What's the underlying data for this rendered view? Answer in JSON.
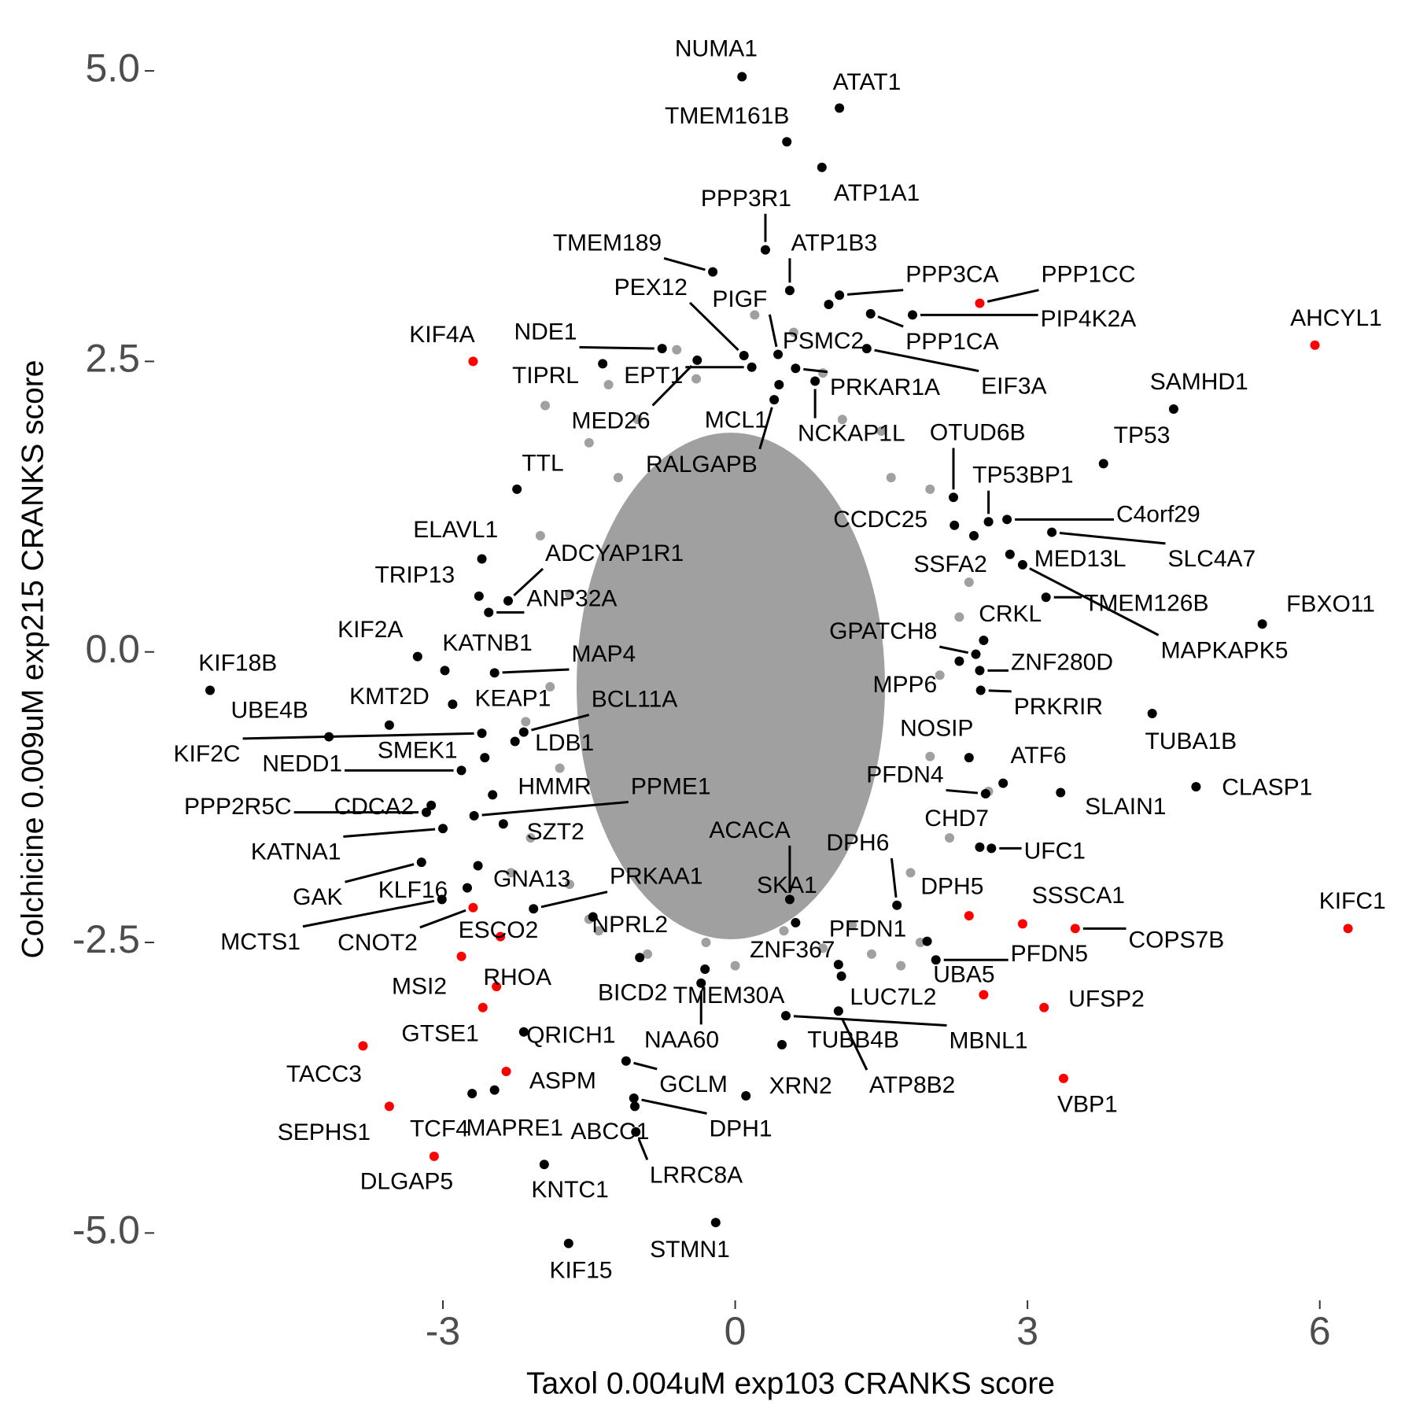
{
  "chart_data": {
    "type": "scatter",
    "xlabel": "Taxol 0.004uM exp103 CRANKS score",
    "ylabel": "Colchicine 0.009uM exp215 CRANKS score",
    "xlim": [
      -5.6,
      6.6
    ],
    "ylim": [
      -5.6,
      5.4
    ],
    "xticks": [
      -3,
      0,
      3,
      6
    ],
    "yticks": [
      {
        "value": -5,
        "label": "-5.0"
      },
      -2.5,
      {
        "value": 0,
        "label": "0.0"
      },
      2.5,
      {
        "value": 5,
        "label": "5.0"
      }
    ],
    "grid": false,
    "series": [
      {
        "color": "#a0a0a0",
        "x": [
          -1.95,
          -1.2,
          -1.7,
          -1.9,
          -2.1,
          -1.7,
          -1.5,
          -0.9,
          -0.3,
          0.5,
          1.2,
          1.9,
          2.2,
          2.0,
          2.3,
          2.0,
          1.5,
          0.9,
          0.2,
          -0.6,
          -1.5,
          -2.3,
          1.7,
          2.4,
          -1.3,
          1.1,
          -2.0,
          1.8,
          0.0,
          -1.0,
          2.6,
          1.4,
          -1.8,
          2.1,
          -0.4,
          0.6,
          -2.15,
          1.6,
          -1.4,
          0.9
        ],
        "y": [
          2.12,
          1.5,
          0.5,
          -0.3,
          -1.6,
          -2.0,
          -2.3,
          -2.6,
          -2.5,
          -2.4,
          -2.35,
          -2.5,
          -1.6,
          -0.9,
          0.3,
          1.4,
          1.9,
          2.4,
          2.9,
          2.6,
          1.8,
          -1.9,
          -2.7,
          0.6,
          2.3,
          2.0,
          1.0,
          -1.9,
          -2.7,
          2.0,
          -1.2,
          -2.6,
          -1.0,
          -0.2,
          2.35,
          2.75,
          -0.6,
          1.5,
          -2.4,
          -2.55
        ]
      },
      {
        "color": "#000000",
        "labels": [
          "NUMA1",
          "ATAT1",
          "TMEM161B",
          "ATP1A1",
          "PPP3R1",
          "ATP1B3",
          "TMEM189",
          "PPP3CA",
          "PEX12",
          "PIGF",
          "PIP4K2A",
          "PPP1CA",
          "PSMC2",
          "EIF3A",
          "NDE1",
          "TIPRL",
          "EPT1",
          "MED26",
          "MCL1",
          "PRKAR1A",
          "NCKAP1L",
          "OTUD6B",
          "RALGAPB",
          "SAMHD1",
          "TP53",
          "TTL",
          "TP53BP1",
          "CCDC25",
          "C4orf29",
          "SLC4A7",
          "MED13L",
          "SSFA2",
          "ELAVL1",
          "ADCYAP1R1",
          "TRIP13",
          "ANP32A",
          "TMEM126B",
          "CRKL",
          "MAPKAPK5",
          "FBXO11",
          "GPATCH8",
          "ZNF280D",
          "KIF2A",
          "KATNB1",
          "MAP4",
          "KIF18B",
          "MPP6",
          "KMT2D",
          "UBE4B",
          "KEAP1",
          "BCL11A",
          "PRKRIR",
          "TUBA1B",
          "NOSIP",
          "LDB1",
          "KIF2C",
          "SMEK1",
          "NEDD1",
          "ATF6",
          "PFDN4",
          "CLASP1",
          "SLAIN1",
          "HMMR",
          "PPME1",
          "PPP2R5C",
          "CDCA2",
          "SZT2",
          "CHD7",
          "ACACA",
          "DPH6",
          "UFC1",
          "KATNA1",
          "GAK",
          "KLF16",
          "GNA13",
          "PRKAA1",
          "SKA1",
          "MCTS1",
          "NPRL2",
          "PFDN1",
          "ZNF367",
          "PFDN5",
          "BICD2",
          "TMEM30A",
          "LUC7L2",
          "QRICH1",
          "NAA60",
          "TUBB4B",
          "MBNL1",
          "GCLM",
          "XRN2",
          "ATP8B2",
          "TCF4",
          "MAPRE1",
          "ABCC1",
          "DPH1",
          "KNTC1",
          "LRRC8A",
          "STMN1",
          "KIF15"
        ],
        "x": [
          0.07,
          1.07,
          0.53,
          0.89,
          0.31,
          0.56,
          -0.23,
          1.07,
          0.09,
          0.44,
          1.82,
          1.39,
          0.96,
          1.35,
          -0.75,
          -1.36,
          0.17,
          -0.39,
          0.45,
          0.62,
          0.82,
          2.24,
          0.4,
          4.5,
          3.78,
          -2.24,
          2.6,
          2.25,
          2.79,
          3.25,
          2.82,
          2.45,
          -2.6,
          -2.33,
          -2.63,
          -2.53,
          3.19,
          2.55,
          2.95,
          5.41,
          2.47,
          2.51,
          -3.26,
          -2.98,
          -2.47,
          -5.39,
          2.3,
          -3.55,
          -4.17,
          -2.9,
          -2.17,
          2.52,
          4.28,
          2.4,
          -2.26,
          -2.6,
          -2.57,
          -2.81,
          2.75,
          2.57,
          4.73,
          3.34,
          -2.49,
          -2.68,
          -3.17,
          -3.12,
          -2.38,
          2.51,
          0.56,
          1.66,
          2.63,
          -3.0,
          -3.22,
          -2.75,
          -2.64,
          -2.07,
          0.62,
          -3.01,
          -1.46,
          1.97,
          1.06,
          2.06,
          -0.98,
          -0.31,
          1.09,
          -2.17,
          -0.35,
          0.48,
          0.52,
          -1.12,
          0.11,
          1.06,
          -2.7,
          -2.47,
          -1.03,
          -1.04,
          -1.96,
          -1.02,
          -0.2,
          -1.71
        ],
        "y": [
          4.95,
          4.68,
          4.39,
          4.17,
          3.46,
          3.11,
          3.27,
          3.07,
          2.55,
          2.56,
          2.9,
          2.91,
          2.99,
          2.61,
          2.61,
          2.48,
          2.45,
          2.51,
          2.3,
          2.44,
          2.33,
          1.33,
          2.17,
          2.09,
          1.62,
          1.4,
          1.12,
          1.09,
          1.14,
          1.03,
          0.84,
          1.0,
          0.8,
          0.44,
          0.48,
          0.34,
          0.47,
          0.1,
          0.75,
          0.24,
          -0.02,
          -0.16,
          -0.04,
          -0.16,
          -0.18,
          -0.33,
          -0.08,
          -0.63,
          -0.73,
          -0.45,
          -0.69,
          -0.33,
          -0.53,
          -0.91,
          -0.77,
          -0.7,
          -0.91,
          -1.02,
          -1.13,
          -1.22,
          -1.16,
          -1.21,
          -1.23,
          -1.41,
          -1.38,
          -1.32,
          -1.48,
          -1.68,
          -2.13,
          -2.18,
          -1.69,
          -1.52,
          -1.81,
          -2.03,
          -1.84,
          -2.21,
          -2.33,
          -2.13,
          -2.28,
          -2.49,
          -2.69,
          -2.65,
          -2.63,
          -2.73,
          -2.79,
          -3.27,
          -2.85,
          -3.38,
          -3.13,
          -3.52,
          -3.82,
          -3.09,
          -3.8,
          -3.77,
          -3.91,
          -3.84,
          -4.41,
          -4.13,
          -4.91,
          -5.09
        ]
      },
      {
        "color": "#ff0000",
        "labels": [
          "PPP1CC",
          "AHCYL1",
          "KIF4A",
          "DPH5",
          "SSSCA1",
          "KIFC1",
          "CNOT2",
          "ESCO2",
          "COPS7B",
          "UBA5",
          "MSI2",
          "RHOA",
          "GTSE1",
          "UFSP2",
          "TACC3",
          "ASPM",
          "VBP1",
          "SEPHS1",
          "DLGAP5"
        ],
        "x": [
          2.51,
          5.95,
          -2.69,
          2.4,
          2.95,
          6.29,
          -2.69,
          -2.41,
          3.49,
          2.55,
          -2.81,
          -2.45,
          -2.59,
          3.17,
          -3.82,
          -2.35,
          3.37,
          -3.55,
          -3.09
        ],
        "y": [
          3.0,
          2.64,
          2.5,
          -2.27,
          -2.34,
          -2.38,
          -2.2,
          -2.45,
          -2.38,
          -2.95,
          -2.62,
          -2.88,
          -3.06,
          -3.06,
          -3.39,
          -3.61,
          -3.67,
          -3.91,
          -4.34
        ]
      }
    ]
  }
}
